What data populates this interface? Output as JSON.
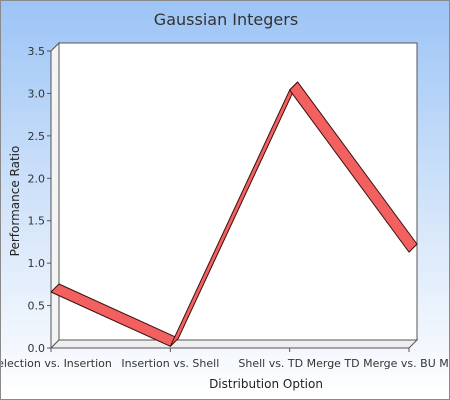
{
  "chart_data": {
    "type": "line",
    "title": "Gaussian Integers",
    "xlabel": "Distribution Option",
    "ylabel": "Performance Ratio",
    "categories": [
      "Selection vs. Insertion",
      "Insertion vs. Shell",
      "Shell vs. TD Merge",
      "TD Merge vs. BU Merge"
    ],
    "series": [
      {
        "values": [
          0.66,
          0.02,
          3.04,
          1.13
        ]
      }
    ],
    "ylim": [
      0,
      3.5
    ],
    "yticks": [
      "0.0",
      "0.5",
      "1.0",
      "1.5",
      "2.0",
      "2.5",
      "3.0",
      "3.5"
    ],
    "grid": false,
    "style": "3d-ribbon",
    "colors": {
      "line": "#f26060",
      "line_edge": "#3a1010",
      "background_top": "#9cc4f6",
      "background_bottom": "#ffffff"
    }
  }
}
